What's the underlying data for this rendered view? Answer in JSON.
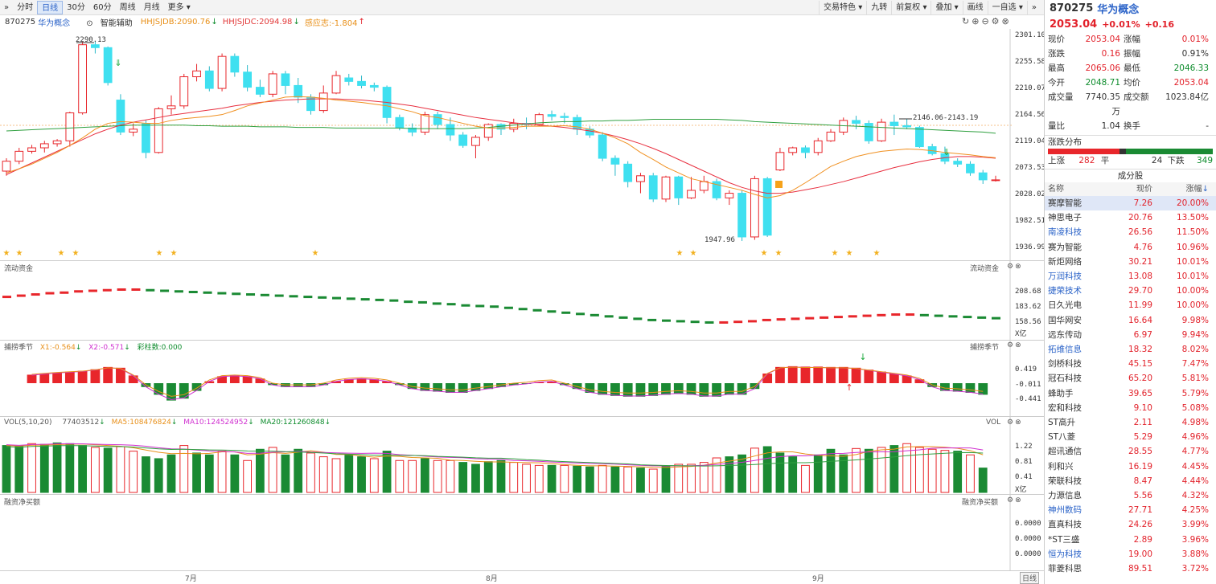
{
  "toolbar": {
    "expand_icon": "double-chevron-right-icon",
    "tabs": [
      "分时",
      "日线",
      "30分",
      "60分",
      "周线",
      "月线",
      "更多"
    ],
    "active_tab": "日线",
    "right_buttons": [
      "交易特色",
      "九转",
      "前复权",
      "叠加",
      "画线",
      "一自选"
    ],
    "collapse_icon": "double-chevron-right-icon"
  },
  "info": {
    "code": "870275",
    "name": "华为概念",
    "assist": "智能辅助",
    "hhjsjdb": "HHJSJDB:2090.76",
    "hhjsjdc": "HHJSJDC:2094.98",
    "gyz": "感应志:-1.804"
  },
  "price_axis": [
    "2301.10",
    "2255.58",
    "2210.07",
    "2164.56",
    "2119.04",
    "2073.53",
    "2028.02",
    "1982.51",
    "1936.99"
  ],
  "annotations": {
    "high": "2290.13",
    "low": "1947.96",
    "range": "2146.06-2143.19"
  },
  "panels": {
    "flow": {
      "label": "流动资金",
      "axis": [
        "208.68",
        "183.62",
        "158.56"
      ],
      "unit": "X亿"
    },
    "capture": {
      "label": "捕捞季节",
      "x1": "X1:-0.564",
      "x2": "X2:-0.571",
      "bars": "彩柱数:0.000",
      "axis": [
        "0.419",
        "-0.011",
        "-0.441"
      ]
    },
    "vol": {
      "label": "VOL(5,10,20)",
      "value": "77403512",
      "ma5": "MA5:108476824",
      "ma10": "MA10:124524952",
      "ma20": "MA20:121260848",
      "axis": [
        "1.22",
        "0.81",
        "0.41"
      ],
      "unit": "X亿",
      "tag": "VOL"
    },
    "margin": {
      "label": "融资净买额",
      "axis": [
        "0.0000",
        "0.0000",
        "0.0000"
      ]
    }
  },
  "x_labels": [
    "7月",
    "8月",
    "9月"
  ],
  "period_tag": "日线",
  "candles": [
    [
      2068,
      2085,
      2060,
      2090
    ],
    [
      2085,
      2102,
      2080,
      2108
    ],
    [
      2102,
      2108,
      2098,
      2113
    ],
    [
      2108,
      2115,
      2100,
      2120
    ],
    [
      2115,
      2120,
      2110,
      2123
    ],
    [
      2120,
      2168,
      2110,
      2170
    ],
    [
      2168,
      2285,
      2165,
      2290
    ],
    [
      2285,
      2280,
      2270,
      2290
    ],
    [
      2280,
      2220,
      2215,
      2282
    ],
    [
      2190,
      2135,
      2130,
      2200
    ],
    [
      2135,
      2140,
      2128,
      2150
    ],
    [
      2150,
      2100,
      2090,
      2155
    ],
    [
      2100,
      2175,
      2098,
      2178
    ],
    [
      2175,
      2180,
      2165,
      2198
    ],
    [
      2180,
      2230,
      2175,
      2235
    ],
    [
      2230,
      2240,
      2222,
      2252
    ],
    [
      2240,
      2210,
      2205,
      2248
    ],
    [
      2210,
      2265,
      2205,
      2270
    ],
    [
      2265,
      2238,
      2230,
      2270
    ],
    [
      2238,
      2212,
      2205,
      2250
    ],
    [
      2212,
      2200,
      2195,
      2225
    ],
    [
      2200,
      2235,
      2195,
      2240
    ],
    [
      2235,
      2215,
      2200,
      2240
    ],
    [
      2215,
      2195,
      2185,
      2228
    ],
    [
      2195,
      2172,
      2165,
      2200
    ],
    [
      2172,
      2202,
      2168,
      2215
    ],
    [
      2202,
      2232,
      2200,
      2240
    ],
    [
      2228,
      2222,
      2215,
      2235
    ],
    [
      2222,
      2215,
      2210,
      2232
    ],
    [
      2215,
      2212,
      2205,
      2220
    ],
    [
      2212,
      2160,
      2150,
      2215
    ],
    [
      2160,
      2142,
      2138,
      2165
    ],
    [
      2142,
      2135,
      2128,
      2150
    ],
    [
      2135,
      2165,
      2130,
      2170
    ],
    [
      2165,
      2148,
      2140,
      2170
    ],
    [
      2148,
      2130,
      2120,
      2160
    ],
    [
      2130,
      2112,
      2108,
      2135
    ],
    [
      2112,
      2126,
      2090,
      2130
    ],
    [
      2126,
      2148,
      2120,
      2150
    ],
    [
      2148,
      2140,
      2130,
      2150
    ],
    [
      2140,
      2150,
      2135,
      2158
    ],
    [
      2150,
      2148,
      2140,
      2160
    ],
    [
      2148,
      2165,
      2145,
      2168
    ],
    [
      2165,
      2162,
      2155,
      2172
    ],
    [
      2162,
      2160,
      2150,
      2168
    ],
    [
      2160,
      2140,
      2130,
      2165
    ],
    [
      2140,
      2130,
      2125,
      2145
    ],
    [
      2130,
      2090,
      2085,
      2135
    ],
    [
      2090,
      2080,
      2060,
      2095
    ],
    [
      2080,
      2050,
      2040,
      2085
    ],
    [
      2050,
      2060,
      2030,
      2065
    ],
    [
      2060,
      2020,
      2015,
      2065
    ],
    [
      2020,
      2058,
      2015,
      2060
    ],
    [
      2058,
      2022,
      2010,
      2060
    ],
    [
      2022,
      2035,
      2020,
      2058
    ],
    [
      2035,
      2050,
      2030,
      2060
    ],
    [
      2050,
      2022,
      2018,
      2055
    ],
    [
      2022,
      2030,
      2010,
      2035
    ],
    [
      2030,
      1955,
      1948,
      2035
    ],
    [
      1955,
      2055,
      1950,
      2060
    ],
    [
      2055,
      1958,
      1955,
      2058
    ],
    [
      2070,
      2100,
      2068,
      2108
    ],
    [
      2100,
      2108,
      2095,
      2110
    ],
    [
      2108,
      2100,
      2090,
      2112
    ],
    [
      2100,
      2120,
      2095,
      2125
    ],
    [
      2120,
      2135,
      2118,
      2140
    ],
    [
      2135,
      2155,
      2130,
      2160
    ],
    [
      2155,
      2150,
      2140,
      2163
    ],
    [
      2150,
      2120,
      2115,
      2155
    ],
    [
      2120,
      2152,
      2118,
      2158
    ],
    [
      2152,
      2146,
      2130,
      2165
    ],
    [
      2146,
      2144,
      2140,
      2158
    ],
    [
      2143,
      2110,
      2108,
      2146
    ],
    [
      2110,
      2098,
      2095,
      2115
    ],
    [
      2098,
      2085,
      2080,
      2110
    ],
    [
      2085,
      2080,
      2075,
      2090
    ],
    [
      2080,
      2065,
      2060,
      2085
    ],
    [
      2065,
      2053,
      2046,
      2070
    ],
    [
      2053,
      2053,
      2050,
      2060
    ]
  ],
  "ma_orange": [
    2065,
    2072,
    2080,
    2090,
    2100,
    2112,
    2125,
    2140,
    2150,
    2153,
    2152,
    2150,
    2150,
    2155,
    2158,
    2160,
    2162,
    2165,
    2172,
    2180,
    2185,
    2190,
    2195,
    2196,
    2195,
    2193,
    2190,
    2188,
    2186,
    2183,
    2180,
    2175,
    2170,
    2163,
    2160,
    2155,
    2150,
    2145,
    2142,
    2142,
    2143,
    2145,
    2145,
    2145,
    2146,
    2144,
    2140,
    2133,
    2125,
    2115,
    2100,
    2088,
    2075,
    2065,
    2055,
    2050,
    2045,
    2040,
    2035,
    2028,
    2022,
    2026,
    2035,
    2048,
    2062,
    2076,
    2085,
    2093,
    2098,
    2102,
    2104,
    2106,
    2105,
    2103,
    2100,
    2098,
    2096,
    2093,
    2091
  ],
  "ma_red": [
    2062,
    2072,
    2082,
    2092,
    2102,
    2112,
    2122,
    2132,
    2140,
    2147,
    2152,
    2156,
    2160,
    2164,
    2167,
    2170,
    2173,
    2176,
    2180,
    2183,
    2186,
    2188,
    2190,
    2191,
    2192,
    2192,
    2192,
    2191,
    2190,
    2188,
    2186,
    2183,
    2180,
    2176,
    2172,
    2168,
    2164,
    2160,
    2157,
    2154,
    2151,
    2149,
    2147,
    2145,
    2143,
    2140,
    2137,
    2133,
    2128,
    2122,
    2115,
    2107,
    2098,
    2088,
    2078,
    2068,
    2058,
    2048,
    2040,
    2034,
    2030,
    2030,
    2032,
    2036,
    2040,
    2045,
    2050,
    2056,
    2062,
    2068,
    2074,
    2079,
    2084,
    2088,
    2091,
    2093,
    2093,
    2092,
    2090
  ],
  "ma_green": [
    2137,
    2138,
    2139,
    2140,
    2141,
    2142,
    2143,
    2144,
    2145,
    2146,
    2147,
    2147,
    2147,
    2147,
    2147,
    2146,
    2146,
    2145,
    2145,
    2145,
    2144,
    2144,
    2144,
    2143,
    2143,
    2143,
    2142,
    2142,
    2142,
    2142,
    2142,
    2142,
    2141,
    2141,
    2141,
    2141,
    2141,
    2142,
    2143,
    2145,
    2147,
    2149,
    2151,
    2152,
    2153,
    2153,
    2154,
    2154,
    2155,
    2155,
    2156,
    2157,
    2157,
    2157,
    2157,
    2157,
    2157,
    2156,
    2155,
    2153,
    2152,
    2151,
    2150,
    2149,
    2148,
    2147,
    2146,
    2145,
    2144,
    2143,
    2142,
    2141,
    2140,
    2139,
    2138,
    2137,
    2136,
    2135,
    2133
  ],
  "vol_bars": [
    [
      1.25,
      1
    ],
    [
      1.22,
      1
    ],
    [
      1.3,
      0
    ],
    [
      1.28,
      1
    ],
    [
      1.32,
      1
    ],
    [
      1.3,
      1
    ],
    [
      1.25,
      1
    ],
    [
      1.2,
      0
    ],
    [
      1.18,
      1
    ],
    [
      1.22,
      0
    ],
    [
      1.1,
      0
    ],
    [
      0.95,
      1
    ],
    [
      0.9,
      1
    ],
    [
      1.0,
      1
    ],
    [
      1.25,
      0
    ],
    [
      1.05,
      1
    ],
    [
      1.0,
      1
    ],
    [
      1.1,
      0
    ],
    [
      1.0,
      1
    ],
    [
      0.85,
      0
    ],
    [
      1.15,
      1
    ],
    [
      1.2,
      0
    ],
    [
      1.0,
      1
    ],
    [
      1.15,
      1
    ],
    [
      1.05,
      0
    ],
    [
      0.95,
      0
    ],
    [
      0.9,
      0
    ],
    [
      1.0,
      1
    ],
    [
      0.95,
      1
    ],
    [
      0.9,
      0
    ],
    [
      1.1,
      1
    ],
    [
      0.85,
      0
    ],
    [
      0.85,
      0
    ],
    [
      0.9,
      1
    ],
    [
      0.85,
      0
    ],
    [
      0.85,
      0
    ],
    [
      0.8,
      1
    ],
    [
      0.75,
      1
    ],
    [
      0.82,
      1
    ],
    [
      0.85,
      1
    ],
    [
      0.8,
      0
    ],
    [
      0.75,
      0
    ],
    [
      0.72,
      0
    ],
    [
      0.72,
      1
    ],
    [
      0.72,
      0
    ],
    [
      0.7,
      1
    ],
    [
      0.68,
      1
    ],
    [
      0.72,
      0
    ],
    [
      0.68,
      1
    ],
    [
      0.68,
      0
    ],
    [
      0.65,
      1
    ],
    [
      0.62,
      0
    ],
    [
      0.7,
      1
    ],
    [
      0.75,
      0
    ],
    [
      0.75,
      0
    ],
    [
      0.8,
      0
    ],
    [
      0.92,
      0
    ],
    [
      0.95,
      1
    ],
    [
      1.0,
      1
    ],
    [
      1.18,
      0
    ],
    [
      1.22,
      1
    ],
    [
      1.05,
      1
    ],
    [
      0.95,
      1
    ],
    [
      0.72,
      0
    ],
    [
      1.0,
      1
    ],
    [
      1.15,
      1
    ],
    [
      1.0,
      1
    ],
    [
      1.17,
      0
    ],
    [
      1.15,
      1
    ],
    [
      1.2,
      0
    ],
    [
      1.25,
      1
    ],
    [
      1.3,
      0
    ],
    [
      1.2,
      0
    ],
    [
      1.15,
      0
    ],
    [
      1.12,
      0
    ],
    [
      1.1,
      1
    ],
    [
      1.0,
      0
    ],
    [
      0.65,
      1
    ]
  ],
  "cap_bars": [
    0.22,
    0.25,
    0.28,
    0.3,
    0.32,
    0.36,
    0.42,
    0.4,
    0.2,
    -0.1,
    -0.3,
    -0.45,
    -0.4,
    -0.2,
    0.05,
    0.18,
    0.2,
    0.18,
    0.12,
    -0.05,
    -0.1,
    -0.1,
    -0.1,
    -0.05,
    0.05,
    0.1,
    0.12,
    0.1,
    0.05,
    -0.05,
    -0.15,
    -0.2,
    -0.22,
    -0.25,
    -0.25,
    -0.2,
    -0.15,
    -0.1,
    -0.05,
    -0.02,
    0.03,
    0.05,
    -0.05,
    -0.15,
    -0.25,
    -0.3,
    -0.33,
    -0.35,
    -0.35,
    -0.33,
    -0.3,
    -0.28,
    -0.3,
    -0.35,
    -0.35,
    -0.3,
    -0.3,
    -0.15,
    0.25,
    0.42,
    0.44,
    0.43,
    0.43,
    0.42,
    0.42,
    0.4,
    0.35,
    0.3,
    0.25,
    0.2,
    0.1,
    -0.1,
    -0.2,
    -0.22,
    -0.25,
    -0.3
  ],
  "flow_vals": [
    200,
    202,
    204,
    206,
    207,
    209,
    210,
    211,
    212,
    212,
    211,
    210,
    209,
    208,
    207,
    206,
    205,
    204,
    203,
    202,
    201,
    200,
    199,
    198,
    197,
    196,
    195,
    194,
    192,
    191,
    189,
    188,
    186,
    185,
    184,
    182,
    180,
    178,
    176,
    174,
    172,
    170,
    168,
    166,
    164,
    162,
    161,
    160,
    159,
    158,
    158,
    159,
    160,
    162,
    163,
    164,
    165,
    166,
    167,
    168,
    169,
    170,
    171,
    171,
    170,
    169,
    168,
    167,
    166,
    165
  ],
  "stars": [
    2,
    1,
    4,
    1,
    1,
    1,
    1,
    0,
    2,
    2,
    0,
    0,
    0,
    1,
    1,
    0,
    1,
    0,
    1,
    0,
    0,
    0,
    0,
    0,
    0,
    1,
    0,
    0,
    0,
    0,
    0,
    0,
    0,
    0,
    0,
    0,
    0,
    0,
    0,
    0,
    0,
    0,
    0,
    0,
    0,
    0,
    0,
    1,
    1,
    0,
    1,
    1,
    0,
    0,
    0,
    0,
    1,
    1,
    0,
    1,
    0,
    0
  ],
  "quote": {
    "title_code": "870275",
    "title_name": "华为概念",
    "price": "2053.04",
    "pct": "+0.01%",
    "chg": "+0.16",
    "rows": [
      {
        "k1": "现价",
        "v1": "2053.04",
        "c1": "red",
        "k2": "涨幅",
        "v2": "0.01%",
        "c2": "red"
      },
      {
        "k1": "涨跌",
        "v1": "0.16",
        "c1": "red",
        "k2": "振幅",
        "v2": "0.91%",
        "c2": ""
      },
      {
        "k1": "最高",
        "v1": "2065.06",
        "c1": "red",
        "k2": "最低",
        "v2": "2046.33",
        "c2": "green"
      },
      {
        "k1": "今开",
        "v1": "2048.71",
        "c1": "green",
        "k2": "均价",
        "v2": "2053.04",
        "c2": "red"
      },
      {
        "k1": "成交量",
        "v1": "7740.35万",
        "c1": "",
        "k2": "成交额",
        "v2": "1023.84亿",
        "c2": ""
      },
      {
        "k1": "量比",
        "v1": "1.04",
        "c1": "",
        "k2": "换手",
        "v2": "-",
        "c2": ""
      }
    ]
  },
  "dist": {
    "title": "涨跌分布",
    "up_label": "上涨",
    "up": "282",
    "flat_label": "平",
    "flat": "24",
    "down_label": "下跌",
    "down": "349",
    "up_frac": 0.43,
    "flat_frac": 0.04
  },
  "stocks": {
    "title": "成分股",
    "headers": [
      "名称",
      "现价",
      "涨幅"
    ],
    "rows": [
      {
        "name": "赛摩智能",
        "price": "7.26",
        "pct": "20.00%",
        "blue": false
      },
      {
        "name": "神思电子",
        "price": "20.76",
        "pct": "13.50%",
        "blue": false
      },
      {
        "name": "南凌科技",
        "price": "26.56",
        "pct": "11.50%",
        "blue": true
      },
      {
        "name": "赛为智能",
        "price": "4.76",
        "pct": "10.96%",
        "blue": false
      },
      {
        "name": "新炬网络",
        "price": "30.21",
        "pct": "10.01%",
        "blue": false
      },
      {
        "name": "万润科技",
        "price": "13.08",
        "pct": "10.01%",
        "blue": true
      },
      {
        "name": "捷荣技术",
        "price": "29.70",
        "pct": "10.00%",
        "blue": true
      },
      {
        "name": "日久光电",
        "price": "11.99",
        "pct": "10.00%",
        "blue": false
      },
      {
        "name": "国华网安",
        "price": "16.64",
        "pct": "9.98%",
        "blue": false
      },
      {
        "name": "远东传动",
        "price": "6.97",
        "pct": "9.94%",
        "blue": false
      },
      {
        "name": "拓维信息",
        "price": "18.32",
        "pct": "8.02%",
        "blue": true
      },
      {
        "name": "剑桥科技",
        "price": "45.15",
        "pct": "7.47%",
        "blue": false
      },
      {
        "name": "冠石科技",
        "price": "65.20",
        "pct": "5.81%",
        "blue": false
      },
      {
        "name": "蜂助手",
        "price": "39.65",
        "pct": "5.79%",
        "blue": false
      },
      {
        "name": "宏和科技",
        "price": "9.10",
        "pct": "5.08%",
        "blue": false
      },
      {
        "name": "ST高升",
        "price": "2.11",
        "pct": "4.98%",
        "blue": false
      },
      {
        "name": "ST八菱",
        "price": "5.29",
        "pct": "4.96%",
        "blue": false
      },
      {
        "name": "超讯通信",
        "price": "28.55",
        "pct": "4.77%",
        "blue": false
      },
      {
        "name": "利和兴",
        "price": "16.19",
        "pct": "4.45%",
        "blue": false
      },
      {
        "name": "荣联科技",
        "price": "8.47",
        "pct": "4.44%",
        "blue": false
      },
      {
        "name": "力源信息",
        "price": "5.56",
        "pct": "4.32%",
        "blue": false
      },
      {
        "name": "神州数码",
        "price": "27.71",
        "pct": "4.25%",
        "blue": true
      },
      {
        "name": "直真科技",
        "price": "24.26",
        "pct": "3.99%",
        "blue": false
      },
      {
        "name": "*ST三盛",
        "price": "2.89",
        "pct": "3.96%",
        "blue": false
      },
      {
        "name": "恒为科技",
        "price": "19.00",
        "pct": "3.88%",
        "blue": true
      },
      {
        "name": "菲菱科思",
        "price": "89.51",
        "pct": "3.72%",
        "blue": false
      }
    ]
  },
  "colors": {
    "up": "#e8262b",
    "down_candle": "#3fe0f0",
    "down_vol": "#1a8a33",
    "ma_orange": "#f09020",
    "ma_red": "#e83040",
    "ma_green": "#30a040",
    "highlight": "#dfe7f7"
  }
}
